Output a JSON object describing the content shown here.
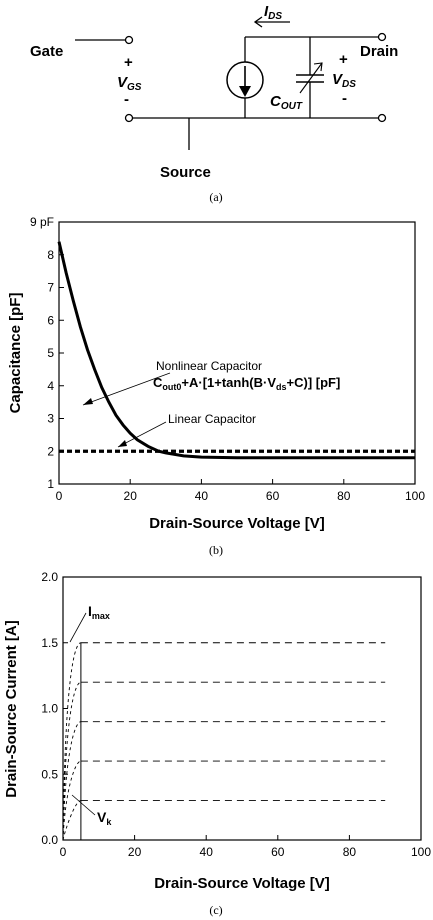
{
  "panel_a": {
    "caption": "(a)",
    "terminals": {
      "gate": "Gate",
      "drain": "Drain",
      "source": "Source"
    },
    "vgs": {
      "plus": "+",
      "minus": "-",
      "label": "V",
      "sub": "GS"
    },
    "vds": {
      "plus": "+",
      "minus": "-",
      "label": "V",
      "sub": "DS"
    },
    "ids": {
      "label": "I",
      "sub": "DS"
    },
    "cout": {
      "label": "C",
      "sub": "OUT"
    }
  },
  "chart_data": [
    {
      "type": "line",
      "caption": "(b)",
      "xlabel": "Drain-Source Voltage [V]",
      "ylabel": "Capacitance [pF]",
      "xlim": [
        0,
        100
      ],
      "ylim": [
        1,
        9
      ],
      "x_ticks": [
        "0",
        "20",
        "40",
        "60",
        "80",
        "100"
      ],
      "y_ticks": [
        "1",
        "2",
        "3",
        "4",
        "5",
        "6",
        "7",
        "8",
        "9"
      ],
      "y_tick_suffix_top": "pF",
      "grid": false,
      "series": [
        {
          "name": "Nonlinear Capacitor",
          "style": "solid",
          "x": [
            0,
            2,
            4,
            6,
            8,
            10,
            12,
            14,
            16,
            18,
            20,
            22,
            25,
            28,
            30,
            35,
            40,
            50,
            60,
            80,
            100
          ],
          "y": [
            8.4,
            7.45,
            6.6,
            5.8,
            5.1,
            4.5,
            3.95,
            3.5,
            3.1,
            2.8,
            2.55,
            2.35,
            2.15,
            2.0,
            1.95,
            1.86,
            1.82,
            1.8,
            1.8,
            1.8,
            1.8
          ]
        },
        {
          "name": "Linear Capacitor",
          "style": "dashed",
          "x": [
            0,
            100
          ],
          "y": [
            2.0,
            2.0
          ]
        }
      ],
      "annotations": [
        {
          "text": "Nonlinear Capacitor"
        },
        {
          "text": "Linear Capacitor"
        }
      ],
      "formula": {
        "c": "C",
        "c_sub": "out0",
        "rest1": "+A·[1+tanh(B·V",
        "v_sub": "ds",
        "rest2": "+C)] [pF]"
      }
    },
    {
      "type": "line",
      "caption": "(c)",
      "xlabel": "Drain-Source Voltage [V]",
      "ylabel": "Drain-Source Current [A]",
      "xlim": [
        0,
        100
      ],
      "ylim": [
        0,
        2.0
      ],
      "x_ticks": [
        "0",
        "20",
        "40",
        "60",
        "80",
        "100"
      ],
      "y_ticks": [
        "0.0",
        "0.5",
        "1.0",
        "1.5",
        "2.0"
      ],
      "grid": false,
      "series": [
        {
          "style": "dashed",
          "x": [
            5,
            90
          ],
          "y": [
            1.5,
            1.5
          ]
        },
        {
          "style": "dashed",
          "x": [
            5,
            90
          ],
          "y": [
            1.2,
            1.2
          ]
        },
        {
          "style": "dashed",
          "x": [
            5,
            90
          ],
          "y": [
            0.9,
            0.9
          ]
        },
        {
          "style": "dashed",
          "x": [
            5,
            90
          ],
          "y": [
            0.6,
            0.6
          ]
        },
        {
          "style": "dashed",
          "x": [
            5,
            90
          ],
          "y": [
            0.3,
            0.3
          ]
        },
        {
          "style": "solid",
          "x": [
            5,
            5
          ],
          "y": [
            0,
            1.5
          ]
        }
      ],
      "annotations": [
        {
          "text": "I",
          "sub": "max",
          "x": 3,
          "y": 1.5
        },
        {
          "text": "V",
          "sub": "k",
          "x": 3,
          "y": 0
        }
      ]
    }
  ]
}
